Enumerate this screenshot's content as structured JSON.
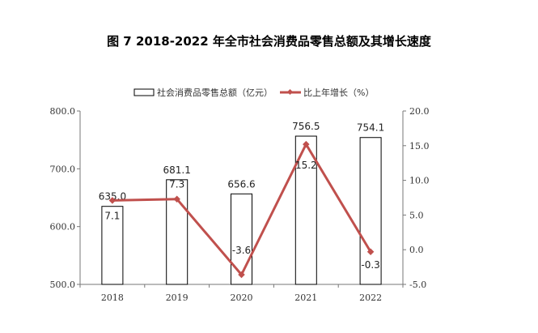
{
  "chart_data": {
    "type": "bar+line",
    "title": "图 7   2018-2022 年全市社会消费品零售总额及其增长速度",
    "categories": [
      "2018",
      "2019",
      "2020",
      "2021",
      "2022"
    ],
    "series": [
      {
        "name": "社会消费品零售总额（亿元）",
        "type": "bar",
        "axis": "left",
        "values": [
          635.0,
          681.1,
          656.6,
          756.5,
          754.1
        ],
        "labels": [
          "635.0",
          "681.1",
          "656.6",
          "756.5",
          "754.1"
        ]
      },
      {
        "name": "比上年增长（%）",
        "type": "line",
        "axis": "right",
        "color": "#c0504d",
        "values": [
          7.1,
          7.3,
          -3.6,
          15.2,
          -0.3
        ],
        "labels": [
          "7.1",
          "7.3",
          "-3.6",
          "15.2",
          "-0.3"
        ]
      }
    ],
    "left_axis": {
      "ylim": [
        500,
        800
      ],
      "ticks": [
        "500.0",
        "600.0",
        "700.0",
        "800.0"
      ]
    },
    "right_axis": {
      "ylim": [
        -5,
        20
      ],
      "ticks": [
        "-5.0",
        "0.0",
        "5.0",
        "10.0",
        "15.0",
        "20.0"
      ]
    },
    "legend_position": "top-center",
    "grid": false
  }
}
